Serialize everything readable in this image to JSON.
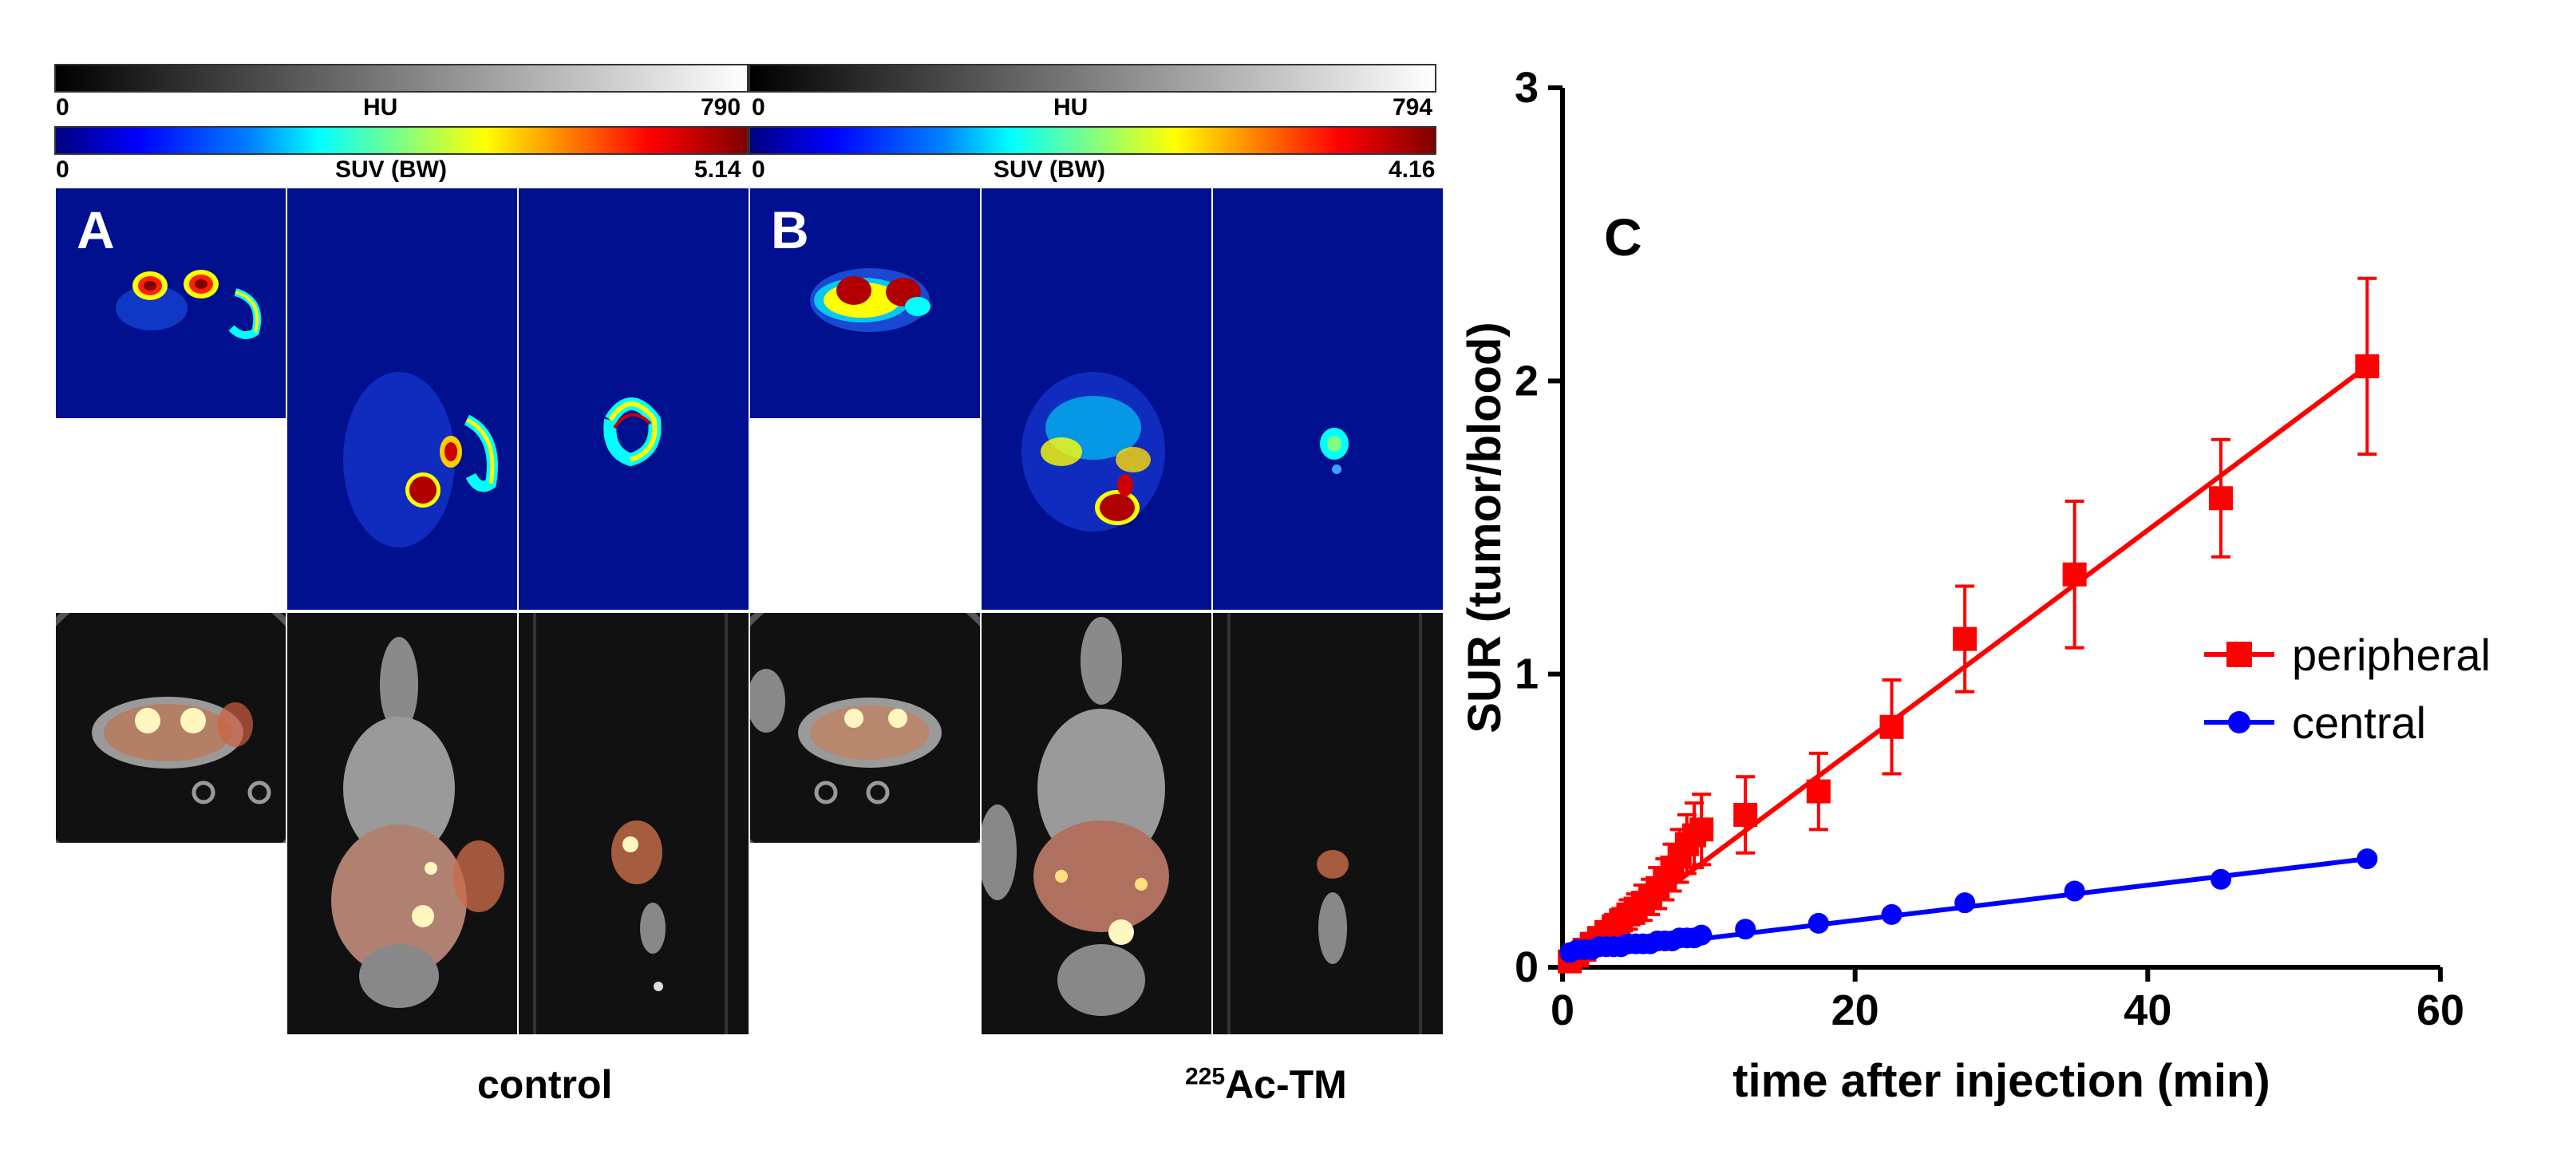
{
  "panel_a": {
    "letter": "A",
    "hu_bar": {
      "min": "0",
      "label": "HU",
      "max": "790"
    },
    "suv_bar": {
      "min": "0",
      "label": "SUV (BW)",
      "max": "5.14"
    },
    "caption": "control"
  },
  "panel_b": {
    "letter": "B",
    "hu_bar": {
      "min": "0",
      "label": "HU",
      "max": "794"
    },
    "suv_bar": {
      "min": "0",
      "label": "SUV (BW)",
      "max": "4.16"
    },
    "caption_sup": "225",
    "caption_main": "Ac-TM"
  },
  "chart_data": {
    "type": "line",
    "panel_letter": "C",
    "xlabel": "time after injection (min)",
    "ylabel": "SUR (tumor/blood)",
    "xlim": [
      0,
      60
    ],
    "ylim": [
      0,
      3
    ],
    "xticks": [
      "0",
      "20",
      "40",
      "60"
    ],
    "yticks": [
      "0",
      "1",
      "2",
      "3"
    ],
    "legend_position": "right-middle",
    "series": [
      {
        "name": "peripheral",
        "color": "#ff0000",
        "marker": "square",
        "x": [
          0.5,
          1,
          1.5,
          2,
          2.5,
          3,
          3.5,
          4,
          4.5,
          5,
          5.5,
          6,
          6.5,
          7,
          7.5,
          8,
          8.5,
          9,
          9.5,
          12.5,
          17.5,
          22.5,
          27.5,
          35,
          45,
          55
        ],
        "y": [
          0.02,
          0.04,
          0.06,
          0.08,
          0.1,
          0.12,
          0.14,
          0.16,
          0.18,
          0.2,
          0.22,
          0.24,
          0.27,
          0.3,
          0.34,
          0.38,
          0.42,
          0.45,
          0.47,
          0.52,
          0.6,
          0.82,
          1.12,
          1.34,
          1.6,
          2.05
        ],
        "err": [
          0.01,
          0.01,
          0.02,
          0.02,
          0.03,
          0.03,
          0.04,
          0.04,
          0.05,
          0.05,
          0.06,
          0.06,
          0.07,
          0.07,
          0.08,
          0.09,
          0.1,
          0.11,
          0.12,
          0.13,
          0.13,
          0.16,
          0.18,
          0.25,
          0.2,
          0.3
        ],
        "fit_line": {
          "x": [
            0,
            55
          ],
          "y": [
            0,
            2.05
          ]
        }
      },
      {
        "name": "central",
        "color": "#0000ff",
        "marker": "circle",
        "x": [
          0.5,
          1,
          1.5,
          2,
          2.5,
          3,
          3.5,
          4,
          4.5,
          5,
          5.5,
          6,
          6.5,
          7,
          7.5,
          8,
          8.5,
          9,
          9.5,
          12.5,
          17.5,
          22.5,
          27.5,
          35,
          45,
          55
        ],
        "y": [
          0.05,
          0.06,
          0.06,
          0.06,
          0.07,
          0.07,
          0.07,
          0.07,
          0.08,
          0.08,
          0.08,
          0.08,
          0.09,
          0.09,
          0.09,
          0.1,
          0.1,
          0.1,
          0.11,
          0.13,
          0.15,
          0.18,
          0.22,
          0.26,
          0.3,
          0.37
        ],
        "fit_line": {
          "x": [
            0,
            55
          ],
          "y": [
            0.04,
            0.37
          ]
        }
      }
    ]
  }
}
